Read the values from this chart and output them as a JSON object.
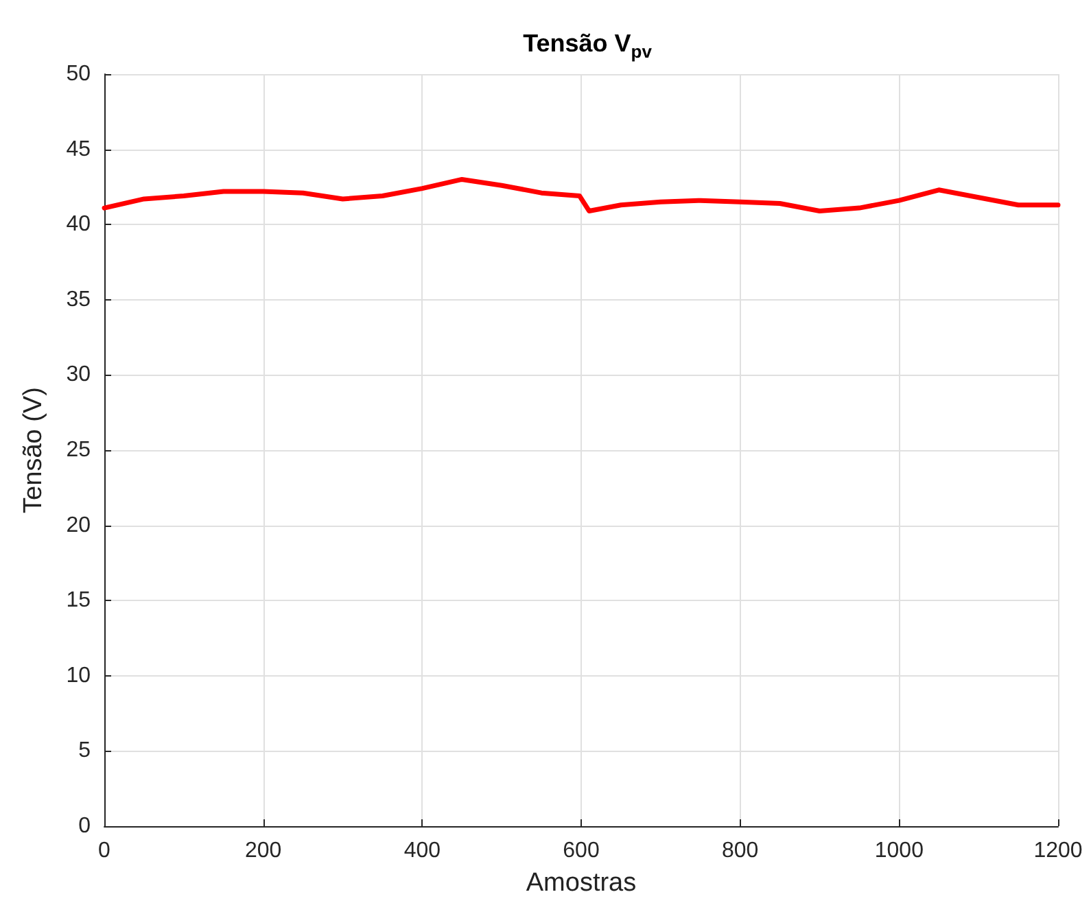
{
  "chart_data": {
    "type": "line",
    "title": "Tensão V$_{pv}$",
    "xlabel": "Amostras",
    "ylabel": "Tensão (V)",
    "x": [
      0,
      50,
      100,
      150,
      200,
      250,
      300,
      350,
      400,
      450,
      500,
      550,
      598,
      610,
      650,
      700,
      750,
      800,
      850,
      900,
      950,
      1000,
      1050,
      1100,
      1150,
      1200
    ],
    "series": [
      {
        "color": "#ff0000",
        "values": [
          41.1,
          41.7,
          41.9,
          42.2,
          42.2,
          42.1,
          41.7,
          41.9,
          42.4,
          43.0,
          42.6,
          42.1,
          41.9,
          40.9,
          41.3,
          41.5,
          41.6,
          41.5,
          41.4,
          40.9,
          41.1,
          41.6,
          42.3,
          41.8,
          41.3,
          41.3
        ]
      }
    ],
    "xlim": [
      0,
      1200
    ],
    "xticks": [
      0,
      200,
      400,
      600,
      800,
      1000,
      1200
    ],
    "ylim": [
      0,
      50
    ],
    "yticks": [
      0,
      5,
      10,
      15,
      20,
      25,
      30,
      35,
      40,
      45,
      50
    ],
    "grid": true,
    "marker": "none",
    "line_style": "solid"
  }
}
